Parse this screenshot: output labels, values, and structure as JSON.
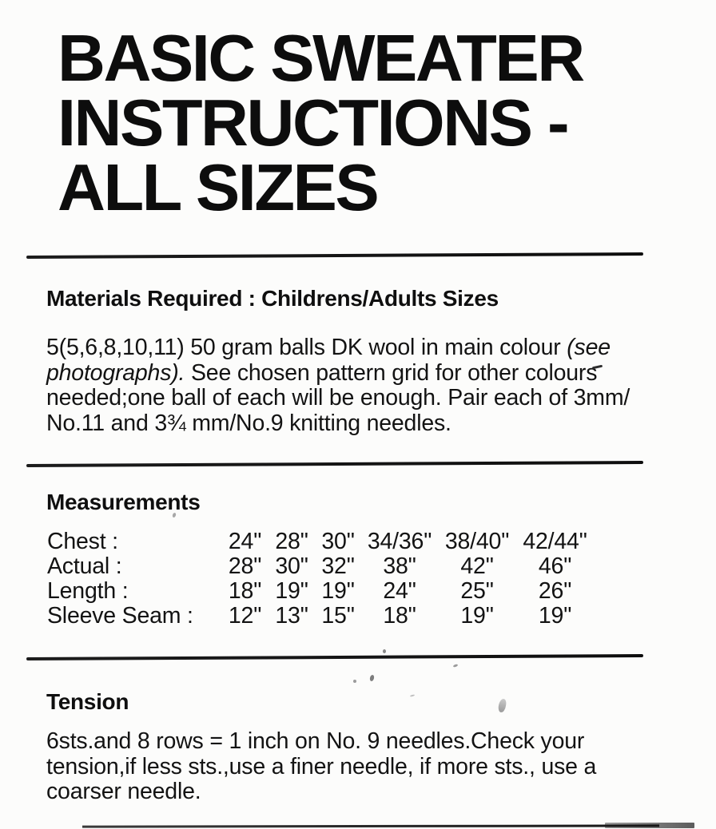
{
  "page": {
    "kind": "scanned knitting pattern instruction sheet",
    "title_lines": [
      "BASIC SWEATER",
      "INSTRUCTIONS -",
      "ALL SIZES"
    ]
  },
  "materials": {
    "heading": "Materials Required : Childrens/Adults Sizes",
    "paragraph_lines": [
      [
        {
          "t": "5(5,6,8,10,11) 50 gram balls DK wool in main colour ",
          "i": 0
        },
        {
          "t": "(see",
          "i": 1
        }
      ],
      [
        {
          "t": "photographs).",
          "i": 1
        },
        {
          "t": " See chosen pattern grid for other colours",
          "i": 0
        }
      ],
      [
        {
          "t": "needed;one ball of each will be enough. Pair each of 3mm/",
          "i": 0
        }
      ],
      [
        {
          "t": "No.11 and 3¾ mm/No.9 knitting needles.",
          "i": 0
        }
      ]
    ]
  },
  "measurements": {
    "heading": "Measurements",
    "rows": [
      {
        "label": "Chest :",
        "values": [
          "24\"",
          "28\"",
          "30\"",
          "34/36\"",
          "38/40\"",
          "42/44\""
        ]
      },
      {
        "label": "Actual :",
        "values": [
          "28\"",
          "30\"",
          "32\"",
          "38\"",
          "42\"",
          "46\""
        ]
      },
      {
        "label": "Length :",
        "values": [
          "18\"",
          "19\"",
          "19\"",
          "24\"",
          "25\"",
          "26\""
        ]
      },
      {
        "label": "Sleeve Seam :",
        "values": [
          "12\"",
          "13\"",
          "15\"",
          "18\"",
          "19\"",
          "19\""
        ]
      }
    ]
  },
  "tension": {
    "heading": "Tension",
    "paragraph_lines": [
      [
        {
          "t": "6sts.and 8 rows = 1 inch on No. 9 needles.Check your",
          "i": 0
        }
      ],
      [
        {
          "t": "tension,if less sts.,use a finer needle, if more sts., use a",
          "i": 0
        }
      ],
      [
        {
          "t": "coarser needle.",
          "i": 0
        }
      ]
    ]
  },
  "colors": {
    "ink": "#101010",
    "paper": "#fcfcfb",
    "rule": "#161616"
  }
}
